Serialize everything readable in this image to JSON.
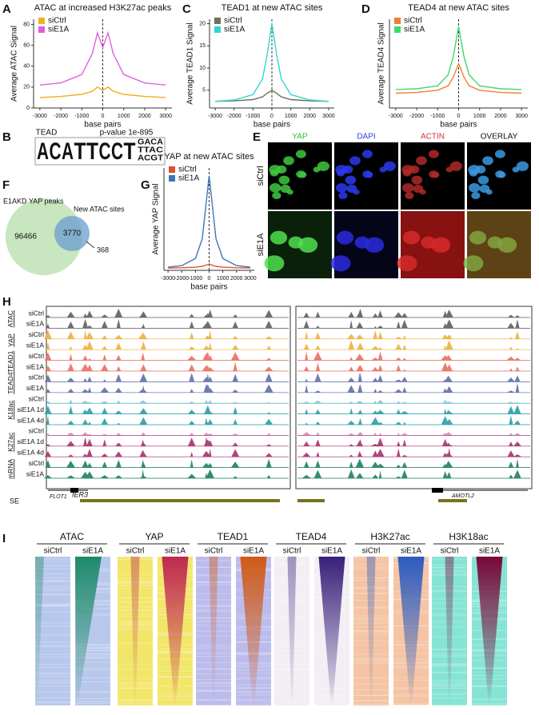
{
  "panel_labels": [
    "A",
    "B",
    "C",
    "D",
    "E",
    "F",
    "G",
    "H",
    "I"
  ],
  "chart_data": [
    {
      "type": "line",
      "title": "ATAC at increased H3K27ac peaks",
      "xlabel": "base pairs",
      "ylabel": "Average ATAC Signal",
      "x": [
        -3000,
        -2000,
        -1000,
        -500,
        -250,
        0,
        250,
        500,
        1000,
        2000,
        3000
      ],
      "xlim": [
        -3300,
        3300
      ],
      "xticks": [
        -3000,
        -2000,
        -1000,
        0,
        1000,
        2000,
        3000
      ],
      "ylim": [
        0,
        85
      ],
      "yticks": [
        0,
        20,
        40,
        60,
        80
      ],
      "legend": "upper left",
      "series": [
        {
          "name": "siCtrl",
          "color": "#f0b020",
          "values": [
            10,
            11,
            13,
            16,
            20,
            17,
            20,
            16,
            13,
            11,
            10
          ]
        },
        {
          "name": "siE1A",
          "color": "#e060e0",
          "values": [
            22,
            24,
            32,
            52,
            72,
            58,
            72,
            52,
            32,
            24,
            22
          ]
        }
      ]
    },
    {
      "type": "line",
      "title": "TEAD1 at new ATAC sites",
      "xlabel": "base pairs",
      "ylabel": "Average TEAD1 Signal",
      "x": [
        -3000,
        -2000,
        -1000,
        -500,
        -250,
        0,
        250,
        500,
        1000,
        2000,
        3000
      ],
      "xlim": [
        -3300,
        3300
      ],
      "xticks": [
        -3000,
        -2000,
        -1000,
        0,
        1000,
        2000,
        3000
      ],
      "ylim": [
        1,
        21
      ],
      "yticks": [
        5,
        10,
        15,
        20
      ],
      "legend": "upper left",
      "series": [
        {
          "name": "siCtrl",
          "color": "#707060",
          "values": [
            2.5,
            2.6,
            2.9,
            3.5,
            4.3,
            5,
            4.3,
            3.5,
            2.9,
            2.6,
            2.5
          ]
        },
        {
          "name": "siE1A",
          "color": "#30d8d0",
          "values": [
            2.5,
            2.8,
            4,
            7.5,
            13,
            20,
            13,
            7.5,
            4,
            2.8,
            2.5
          ]
        }
      ]
    },
    {
      "type": "line",
      "title": "TEAD4 at new ATAC sites",
      "xlabel": "base pairs",
      "ylabel": "Average TEAD4 Signal",
      "x": [
        -3000,
        -2000,
        -1000,
        -500,
        -250,
        0,
        250,
        500,
        1000,
        2000,
        3000
      ],
      "xlim": [
        -3300,
        3300
      ],
      "xticks": [
        -3000,
        -2000,
        -1000,
        0,
        1000,
        2000,
        3000
      ],
      "ylim": [
        0,
        12
      ],
      "legend": "upper left",
      "series": [
        {
          "name": "siCtrl",
          "color": "#f08030",
          "values": [
            2,
            2.1,
            2.4,
            3,
            4.2,
            6,
            4.2,
            3,
            2.4,
            2.1,
            2
          ]
        },
        {
          "name": "siE1A",
          "color": "#40d870",
          "values": [
            2.5,
            2.6,
            3,
            4.5,
            7,
            11,
            7,
            4.5,
            3,
            2.6,
            2.5
          ]
        }
      ]
    },
    {
      "type": "line",
      "title": "YAP at new ATAC sites",
      "xlabel": "base pairs",
      "ylabel": "Average YAP Signal",
      "x": [
        -3000,
        -2000,
        -1000,
        -500,
        -250,
        0,
        250,
        500,
        1000,
        2000,
        3000
      ],
      "xlim": [
        -3300,
        3300
      ],
      "xticks": [
        -3000,
        -2000,
        -1000,
        0,
        1000,
        2000,
        3000
      ],
      "ylim": [
        0,
        130
      ],
      "legend": "upper left",
      "series": [
        {
          "name": "siCtrl",
          "color": "#e05030",
          "values": [
            3,
            3.2,
            4,
            5,
            6.5,
            8,
            6.5,
            5,
            4,
            3.2,
            3
          ]
        },
        {
          "name": "siE1A",
          "color": "#3a78b8",
          "values": [
            4,
            6,
            15,
            40,
            80,
            120,
            80,
            40,
            15,
            6,
            4
          ]
        }
      ]
    }
  ],
  "motif": {
    "name": "TEAD",
    "pvalue": "p-value 1e-895",
    "letters": [
      "A",
      "C",
      "A",
      "T",
      "T",
      "C",
      "C",
      "T"
    ],
    "tail": [
      "GACA",
      "TTAC",
      "ACGT"
    ]
  },
  "microscopy": {
    "columns": [
      "YAP",
      "DAPI",
      "ACTIN",
      "OVERLAY"
    ],
    "rows": [
      "siCtrl",
      "siE1A"
    ]
  },
  "venn": {
    "left_label": "E1AKD YAP peaks",
    "right_label": "New ATAC sites",
    "left_only": 96466,
    "overlap": 3770,
    "right_only": 368
  },
  "tracks": {
    "groups": [
      {
        "name": "ATAC",
        "color": "#606060",
        "samples": [
          "siCtrl",
          "siE1A"
        ]
      },
      {
        "name": "YAP",
        "color": "#f0b040",
        "samples": [
          "siCtrl",
          "siE1A"
        ]
      },
      {
        "name": "TEAD1",
        "color": "#e87060",
        "samples": [
          "siCtrl",
          "siE1A"
        ]
      },
      {
        "name": "TEAD4",
        "color": "#6070a8",
        "samples": [
          "siCtrl",
          "siE1A"
        ]
      },
      {
        "name": "K18ac",
        "color": "#2a9fa8",
        "samples": [
          "siCtrl",
          "siE1A 1d",
          "siE1A 4d"
        ]
      },
      {
        "name": "K27ac",
        "color": "#a83070",
        "samples": [
          "siCtrl",
          "siE1A 1d",
          "siE1A 4d"
        ]
      },
      {
        "name": "mRNA",
        "color": "#208060",
        "samples": [
          "siCtrl",
          "siE1A"
        ]
      }
    ],
    "genes": [
      "FLOT1",
      "IER3",
      "AMOTL2"
    ],
    "se_label": "SE"
  },
  "heatmaps": {
    "groups": [
      {
        "name": "ATAC",
        "columns": [
          "siCtrl",
          "siE1A"
        ],
        "background": "#b8c8ec",
        "color": "#1e8a6a"
      },
      {
        "name": "YAP",
        "columns": [
          "siCtrl",
          "siE1A"
        ],
        "background": "#f2e66a",
        "color": "#c02850"
      },
      {
        "name": "TEAD1",
        "columns": [
          "siCtrl",
          "siE1A"
        ],
        "background": "#bcbcec",
        "color": "#d05a18"
      },
      {
        "name": "TEAD4",
        "columns": [
          "siCtrl",
          "siE1A"
        ],
        "background": "#f2eef4",
        "color": "#38207a"
      },
      {
        "name": "H3K27ac",
        "columns": [
          "siCtrl",
          "siE1A"
        ],
        "background": "#f4c4a4",
        "color": "#2c5cc0"
      },
      {
        "name": "H3K18ac",
        "columns": [
          "siCtrl",
          "siE1A"
        ],
        "background": "#86e4d4",
        "color": "#7a0838"
      }
    ]
  }
}
